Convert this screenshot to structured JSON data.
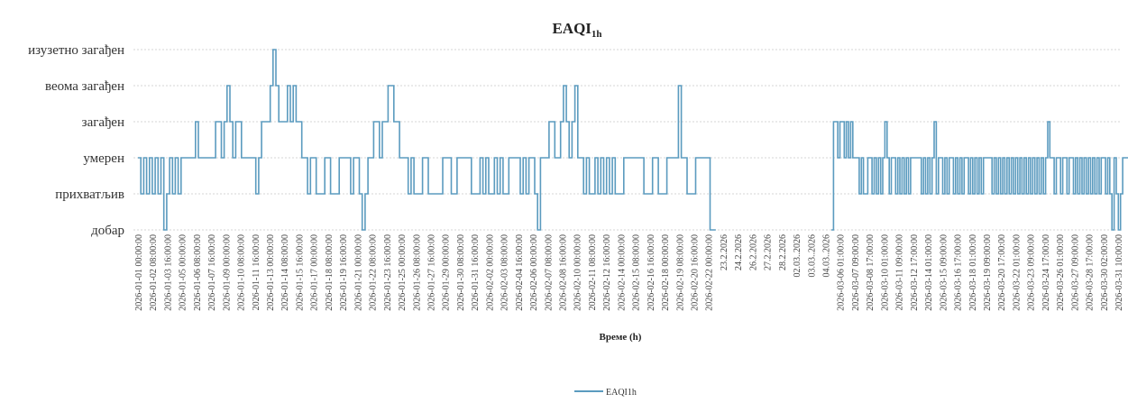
{
  "chart_data": {
    "type": "line",
    "title": "EAQI",
    "title_subscript": "1h",
    "xlabel": "Време (h)",
    "y_categories": [
      "добар",
      "прихватљив",
      "умерен",
      "загађен",
      "веома загађен",
      "изузетно загађен"
    ],
    "ylim": [
      1,
      6
    ],
    "grid": true,
    "legend_position": "bottom-center",
    "series_color": "#5b9bbf",
    "x_tick_labels": [
      "2026-01-01 00:00:00",
      "2026-01-02 08:00:00",
      "2026-01-03 16:00:00",
      "2026-01-05 00:00:00",
      "2026-01-06 08:00:00",
      "2026-01-07 16:00:00",
      "2026-01-09 00:00:00",
      "2026-01-10 08:00:00",
      "2026-01-11 16:00:00",
      "2026-01-13 00:00:00",
      "2026-01-14 08:00:00",
      "2026-01-15 16:00:00",
      "2026-01-17 00:00:00",
      "2026-01-18 08:00:00",
      "2026-01-19 16:00:00",
      "2026-01-21 00:00:00",
      "2026-01-22 08:00:00",
      "2026-01-23 16:00:00",
      "2026-01-25 00:00:00",
      "2026-01-26 08:00:00",
      "2026-01-27 16:00:00",
      "2026-01-29 00:00:00",
      "2026-01-30 08:00:00",
      "2026-01-31 16:00:00",
      "2026-02-02 00:00:00",
      "2026-02-03 08:00:00",
      "2026-02-04 16:00:00",
      "2026-02-06 00:00:00",
      "2026-02-07 08:00:00",
      "2026-02-08 16:00:00",
      "2026-02-10 00:00:00",
      "2026-02-11 08:00:00",
      "2026-02-12 16:00:00",
      "2026-02-14 00:00:00",
      "2026-02-15 08:00:00",
      "2026-02-16 16:00:00",
      "2026-02-18 00:00:00",
      "2026-02-19 08:00:00",
      "2026-02-20 16:00:00",
      "2026-02-22 00:00:00",
      "23.2.2026",
      "24.2.2026",
      "26.2.2026",
      "27.2.2026",
      "28.2.2026",
      "02.03..2026",
      "03.03..2026",
      "04.03..2026",
      "2026-03-06 01:00:00",
      "2026-03-07 09:00:00",
      "2026-03-08 17:00:00",
      "2026-03-10 01:00:00",
      "2026-03-11 09:00:00",
      "2026-03-12 17:00:00",
      "2026-03-14 01:00:00",
      "2026-03-15 09:00:00",
      "2026-03-16 17:00:00",
      "2026-03-18 01:00:00",
      "2026-03-19 09:00:00",
      "2026-03-20 17:00:00",
      "2026-03-22 01:00:00",
      "2026-03-23 09:00:00",
      "2026-03-24 17:00:00",
      "2026-03-26 01:00:00",
      "2026-03-27 09:00:00",
      "2026-03-28 17:00:00",
      "2026-03-30 02:00:00",
      "2026-03-31 10:00:00"
    ],
    "series": [
      {
        "name": "EAQI1h",
        "segments": [
          {
            "start_tick": 0,
            "end_tick": 39.5,
            "levels": [
              3,
              2,
              3,
              2,
              3,
              2,
              3,
              2,
              3,
              1,
              2,
              3,
              2,
              3,
              2,
              3,
              3,
              3,
              3,
              3,
              4,
              3,
              3,
              3,
              3,
              3,
              3,
              4,
              4,
              3,
              4,
              5,
              4,
              3,
              4,
              4,
              3,
              3,
              3,
              3,
              3,
              2,
              3,
              4,
              4,
              4,
              5,
              6,
              5,
              4,
              4,
              4,
              5,
              4,
              5,
              4,
              4,
              3,
              3,
              2,
              3,
              3,
              2,
              2,
              2,
              3,
              3,
              2,
              2,
              2,
              3,
              3,
              3,
              3,
              2,
              3,
              3,
              2,
              1,
              2,
              3,
              3,
              4,
              4,
              3,
              4,
              4,
              5,
              5,
              4,
              4,
              3,
              3,
              3,
              2,
              3,
              2,
              2,
              2,
              3,
              3,
              2,
              2,
              2,
              2,
              2,
              3,
              3,
              3,
              2,
              2,
              3,
              3,
              3,
              3,
              3,
              2,
              2,
              2,
              3,
              2,
              3,
              2,
              2,
              3,
              2,
              3,
              2,
              2,
              3,
              3,
              3,
              3,
              2,
              3,
              2,
              3,
              3,
              2,
              1,
              3,
              3,
              3,
              4,
              4,
              3,
              3,
              4,
              5,
              4,
              3,
              4,
              5,
              3,
              3,
              2,
              3,
              2,
              2,
              3,
              2,
              3,
              2,
              3,
              2,
              3,
              2,
              2,
              2,
              3,
              3,
              3,
              3,
              3,
              3,
              3,
              2,
              2,
              2,
              3,
              3,
              2,
              2,
              2,
              3,
              3,
              3,
              3,
              5,
              3,
              3,
              2,
              2,
              2,
              3,
              3,
              3,
              3,
              3,
              1,
              1
            ]
          },
          {
            "start_tick": 47.4,
            "end_tick": 67.9,
            "levels": [
              1,
              4,
              4,
              3,
              4,
              4,
              3,
              4,
              3,
              4,
              3,
              3,
              3,
              2,
              3,
              2,
              2,
              3,
              3,
              2,
              3,
              2,
              3,
              2,
              3,
              4,
              3,
              2,
              3,
              3,
              2,
              3,
              2,
              3,
              2,
              3,
              2,
              3,
              3,
              3,
              3,
              3,
              2,
              3,
              2,
              3,
              2,
              3,
              4,
              2,
              3,
              3,
              2,
              3,
              2,
              3,
              3,
              2,
              3,
              2,
              3,
              2,
              3,
              3,
              2,
              3,
              2,
              3,
              2,
              3,
              2,
              3,
              3,
              3,
              3,
              2,
              3,
              2,
              3,
              2,
              3,
              2,
              3,
              2,
              3,
              2,
              3,
              2,
              3,
              2,
              3,
              2,
              3,
              2,
              3,
              2,
              3,
              2,
              3,
              2,
              3,
              4,
              3,
              3,
              2,
              3,
              3,
              2,
              3,
              3,
              2,
              3,
              3,
              2,
              3,
              2,
              3,
              2,
              3,
              2,
              3,
              2,
              3,
              2,
              3,
              2,
              3,
              3,
              2,
              3,
              2,
              1,
              3,
              2,
              1,
              2,
              3,
              3,
              3,
              3
            ]
          }
        ]
      }
    ]
  }
}
